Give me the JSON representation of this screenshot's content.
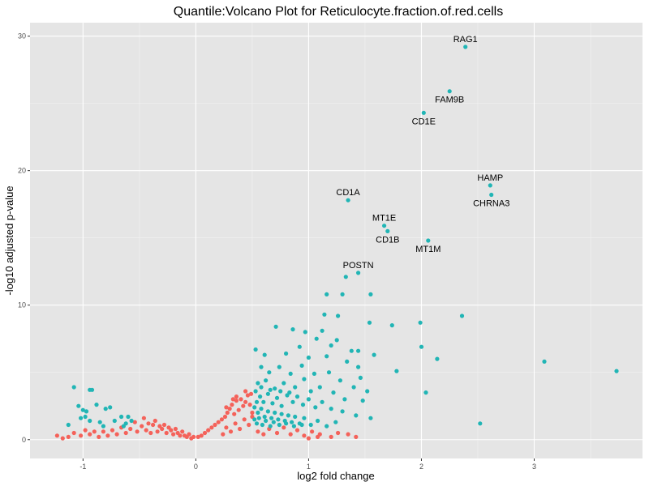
{
  "chart_data": {
    "type": "scatter",
    "title": "Quantile:Volcano Plot for Reticulocyte.fraction.of.red.cells",
    "xlabel": "log2 fold change",
    "ylabel": "-log10 adjusted p-value",
    "xlim": [
      -1.47,
      3.96
    ],
    "ylim": [
      -1.4,
      31.0
    ],
    "x_ticks": [
      -1,
      0,
      1,
      2,
      3
    ],
    "y_ticks": [
      0,
      10,
      20,
      30
    ],
    "grid": true,
    "legend": "none",
    "colors": {
      "panel": "#e5e5e5",
      "grid_major": "#ffffff",
      "grid_minor": "#f2f2f2",
      "significant": "#21b5b5",
      "not_significant": "#f4625a"
    },
    "labeled_points": [
      {
        "label": "RAG1",
        "x": 2.39,
        "y": 29.2,
        "label_pos": "above"
      },
      {
        "label": "FAM9B",
        "x": 2.25,
        "y": 25.9,
        "label_pos": "below"
      },
      {
        "label": "CD1E",
        "x": 2.02,
        "y": 24.3,
        "label_pos": "below"
      },
      {
        "label": "HAMP",
        "x": 2.61,
        "y": 18.9,
        "label_pos": "above"
      },
      {
        "label": "CHRNA3",
        "x": 2.62,
        "y": 18.2,
        "label_pos": "below"
      },
      {
        "label": "CD1A",
        "x": 1.35,
        "y": 17.8,
        "label_pos": "above"
      },
      {
        "label": "MT1E",
        "x": 1.67,
        "y": 15.9,
        "label_pos": "above"
      },
      {
        "label": "CD1B",
        "x": 1.7,
        "y": 15.5,
        "label_pos": "below"
      },
      {
        "label": "MT1M",
        "x": 2.06,
        "y": 14.8,
        "label_pos": "below"
      },
      {
        "label": "POSTN",
        "x": 1.44,
        "y": 12.4,
        "label_pos": "above"
      }
    ],
    "series": [
      {
        "color": "#21b5b5",
        "points": [
          [
            1.33,
            12.1
          ],
          [
            1.16,
            10.8
          ],
          [
            1.3,
            10.8
          ],
          [
            1.55,
            10.8
          ],
          [
            1.14,
            9.3
          ],
          [
            1.26,
            9.2
          ],
          [
            1.54,
            8.7
          ],
          [
            1.74,
            8.5
          ],
          [
            1.99,
            8.7
          ],
          [
            2.36,
            9.2
          ],
          [
            2.0,
            6.9
          ],
          [
            2.14,
            6.0
          ],
          [
            1.78,
            5.1
          ],
          [
            2.04,
            3.5
          ],
          [
            2.52,
            1.2
          ],
          [
            3.09,
            5.8
          ],
          [
            3.73,
            5.1
          ],
          [
            0.71,
            8.4
          ],
          [
            0.86,
            8.2
          ],
          [
            0.97,
            8.0
          ],
          [
            1.12,
            8.1
          ],
          [
            1.25,
            7.4
          ],
          [
            1.2,
            7.0
          ],
          [
            1.38,
            6.6
          ],
          [
            1.44,
            6.6
          ],
          [
            1.58,
            6.3
          ],
          [
            0.53,
            6.7
          ],
          [
            0.61,
            6.3
          ],
          [
            0.8,
            6.4
          ],
          [
            0.92,
            6.9
          ],
          [
            1.07,
            7.5
          ],
          [
            1.0,
            6.1
          ],
          [
            1.16,
            6.2
          ],
          [
            1.34,
            5.8
          ],
          [
            1.44,
            5.4
          ],
          [
            1.46,
            4.6
          ],
          [
            0.58,
            5.4
          ],
          [
            0.65,
            5.0
          ],
          [
            0.74,
            5.4
          ],
          [
            0.84,
            4.9
          ],
          [
            0.94,
            5.5
          ],
          [
            1.05,
            4.9
          ],
          [
            1.18,
            5.0
          ],
          [
            1.28,
            4.4
          ],
          [
            1.4,
            3.9
          ],
          [
            1.52,
            3.6
          ],
          [
            0.55,
            4.2
          ],
          [
            0.62,
            4.4
          ],
          [
            0.7,
            3.8
          ],
          [
            0.78,
            4.2
          ],
          [
            0.88,
            3.9
          ],
          [
            0.96,
            4.5
          ],
          [
            1.02,
            3.6
          ],
          [
            1.1,
            3.9
          ],
          [
            1.22,
            3.5
          ],
          [
            1.32,
            3.0
          ],
          [
            1.48,
            2.9
          ],
          [
            0.53,
            3.6
          ],
          [
            0.57,
            3.2
          ],
          [
            0.6,
            2.8
          ],
          [
            0.64,
            3.4
          ],
          [
            0.68,
            2.7
          ],
          [
            0.72,
            3.1
          ],
          [
            0.76,
            2.5
          ],
          [
            0.81,
            3.3
          ],
          [
            0.86,
            2.8
          ],
          [
            0.9,
            3.2
          ],
          [
            0.95,
            2.6
          ],
          [
            1.0,
            3.0
          ],
          [
            1.06,
            2.4
          ],
          [
            1.12,
            2.8
          ],
          [
            1.2,
            2.3
          ],
          [
            1.3,
            2.1
          ],
          [
            1.42,
            1.8
          ],
          [
            1.55,
            1.6
          ],
          [
            0.52,
            2.4
          ],
          [
            0.55,
            2.0
          ],
          [
            0.58,
            2.3
          ],
          [
            0.61,
            1.7
          ],
          [
            0.64,
            2.1
          ],
          [
            0.67,
            1.6
          ],
          [
            0.7,
            2.0
          ],
          [
            0.73,
            1.5
          ],
          [
            0.76,
            1.9
          ],
          [
            0.79,
            1.4
          ],
          [
            0.82,
            1.8
          ],
          [
            0.85,
            1.3
          ],
          [
            0.88,
            1.7
          ],
          [
            0.92,
            1.2
          ],
          [
            0.96,
            1.6
          ],
          [
            1.02,
            1.1
          ],
          [
            1.08,
            1.4
          ],
          [
            1.16,
            1.0
          ],
          [
            1.24,
            1.3
          ],
          [
            0.52,
            1.5
          ],
          [
            0.54,
            1.2
          ],
          [
            0.56,
            1.6
          ],
          [
            0.59,
            1.1
          ],
          [
            0.62,
            1.4
          ],
          [
            0.66,
            1.0
          ],
          [
            0.69,
            1.3
          ],
          [
            0.74,
            1.1
          ],
          [
            0.8,
            1.2
          ],
          [
            0.87,
            1.0
          ],
          [
            0.94,
            1.1
          ],
          [
            0.54,
            2.8
          ],
          [
            0.58,
            3.9
          ],
          [
            0.66,
            3.7
          ],
          [
            0.75,
            3.6
          ],
          [
            0.83,
            3.5
          ],
          [
            -1.08,
            3.9
          ],
          [
            -0.92,
            3.7
          ],
          [
            -0.94,
            3.7
          ],
          [
            -1.0,
            2.2
          ],
          [
            -1.04,
            2.5
          ],
          [
            -0.97,
            2.1
          ],
          [
            -0.88,
            2.6
          ],
          [
            -0.8,
            2.3
          ],
          [
            -0.76,
            2.4
          ],
          [
            -1.13,
            1.1
          ],
          [
            -1.02,
            1.6
          ],
          [
            -0.98,
            1.7
          ],
          [
            -0.94,
            1.4
          ],
          [
            -0.85,
            1.3
          ],
          [
            -0.82,
            1.0
          ],
          [
            -0.72,
            1.4
          ],
          [
            -0.66,
            1.7
          ],
          [
            -0.62,
            1.2
          ],
          [
            -0.6,
            1.7
          ],
          [
            -0.57,
            1.4
          ],
          [
            -0.64,
            1.0
          ]
        ]
      },
      {
        "color": "#f4625a",
        "points": [
          [
            -1.23,
            0.3
          ],
          [
            -1.18,
            0.1
          ],
          [
            -1.13,
            0.2
          ],
          [
            -1.08,
            0.5
          ],
          [
            -1.02,
            0.3
          ],
          [
            -0.98,
            0.7
          ],
          [
            -0.94,
            0.4
          ],
          [
            -0.9,
            0.6
          ],
          [
            -0.86,
            0.2
          ],
          [
            -0.82,
            0.6
          ],
          [
            -0.78,
            0.3
          ],
          [
            -0.74,
            0.7
          ],
          [
            -0.7,
            0.4
          ],
          [
            -0.66,
            0.9
          ],
          [
            -0.62,
            0.5
          ],
          [
            -0.58,
            0.8
          ],
          [
            -0.54,
            1.3
          ],
          [
            -0.52,
            0.6
          ],
          [
            -0.48,
            1.0
          ],
          [
            -0.46,
            1.6
          ],
          [
            -0.44,
            0.7
          ],
          [
            -0.42,
            1.2
          ],
          [
            -0.4,
            0.5
          ],
          [
            -0.38,
            1.1
          ],
          [
            -0.36,
            1.4
          ],
          [
            -0.34,
            0.6
          ],
          [
            -0.32,
            1.0
          ],
          [
            -0.3,
            0.8
          ],
          [
            -0.28,
            1.1
          ],
          [
            -0.26,
            0.5
          ],
          [
            -0.24,
            0.9
          ],
          [
            -0.22,
            0.7
          ],
          [
            -0.2,
            0.4
          ],
          [
            -0.18,
            0.8
          ],
          [
            -0.16,
            0.5
          ],
          [
            -0.14,
            0.3
          ],
          [
            -0.12,
            0.6
          ],
          [
            -0.1,
            0.3
          ],
          [
            -0.08,
            0.2
          ],
          [
            -0.06,
            0.4
          ],
          [
            -0.04,
            0.1
          ],
          [
            -0.02,
            0.2
          ],
          [
            0.02,
            0.2
          ],
          [
            0.05,
            0.3
          ],
          [
            0.08,
            0.5
          ],
          [
            0.11,
            0.7
          ],
          [
            0.14,
            0.9
          ],
          [
            0.17,
            1.1
          ],
          [
            0.2,
            1.3
          ],
          [
            0.23,
            1.5
          ],
          [
            0.26,
            1.7
          ],
          [
            0.28,
            2.0
          ],
          [
            0.3,
            2.3
          ],
          [
            0.32,
            2.6
          ],
          [
            0.34,
            1.9
          ],
          [
            0.36,
            2.9
          ],
          [
            0.38,
            2.2
          ],
          [
            0.4,
            3.0
          ],
          [
            0.42,
            2.5
          ],
          [
            0.44,
            2.8
          ],
          [
            0.46,
            3.3
          ],
          [
            0.48,
            2.6
          ],
          [
            0.5,
            2.0
          ],
          [
            0.24,
            0.4
          ],
          [
            0.27,
            0.9
          ],
          [
            0.31,
            0.6
          ],
          [
            0.35,
            1.2
          ],
          [
            0.39,
            0.8
          ],
          [
            0.43,
            1.5
          ],
          [
            0.47,
            1.1
          ],
          [
            0.5,
            1.7
          ],
          [
            0.55,
            0.6
          ],
          [
            0.6,
            0.4
          ],
          [
            0.65,
            0.8
          ],
          [
            0.72,
            0.5
          ],
          [
            0.78,
            0.9
          ],
          [
            0.84,
            0.4
          ],
          [
            0.9,
            0.7
          ],
          [
            0.96,
            0.3
          ],
          [
            1.03,
            0.6
          ],
          [
            1.1,
            0.4
          ],
          [
            1.2,
            0.2
          ],
          [
            1.26,
            0.5
          ],
          [
            1.0,
            0.1
          ],
          [
            1.08,
            0.2
          ],
          [
            1.35,
            0.4
          ],
          [
            1.42,
            0.2
          ],
          [
            0.36,
            3.2
          ],
          [
            0.44,
            3.6
          ],
          [
            0.49,
            3.4
          ],
          [
            0.27,
            2.4
          ],
          [
            0.33,
            3.0
          ]
        ]
      }
    ]
  }
}
